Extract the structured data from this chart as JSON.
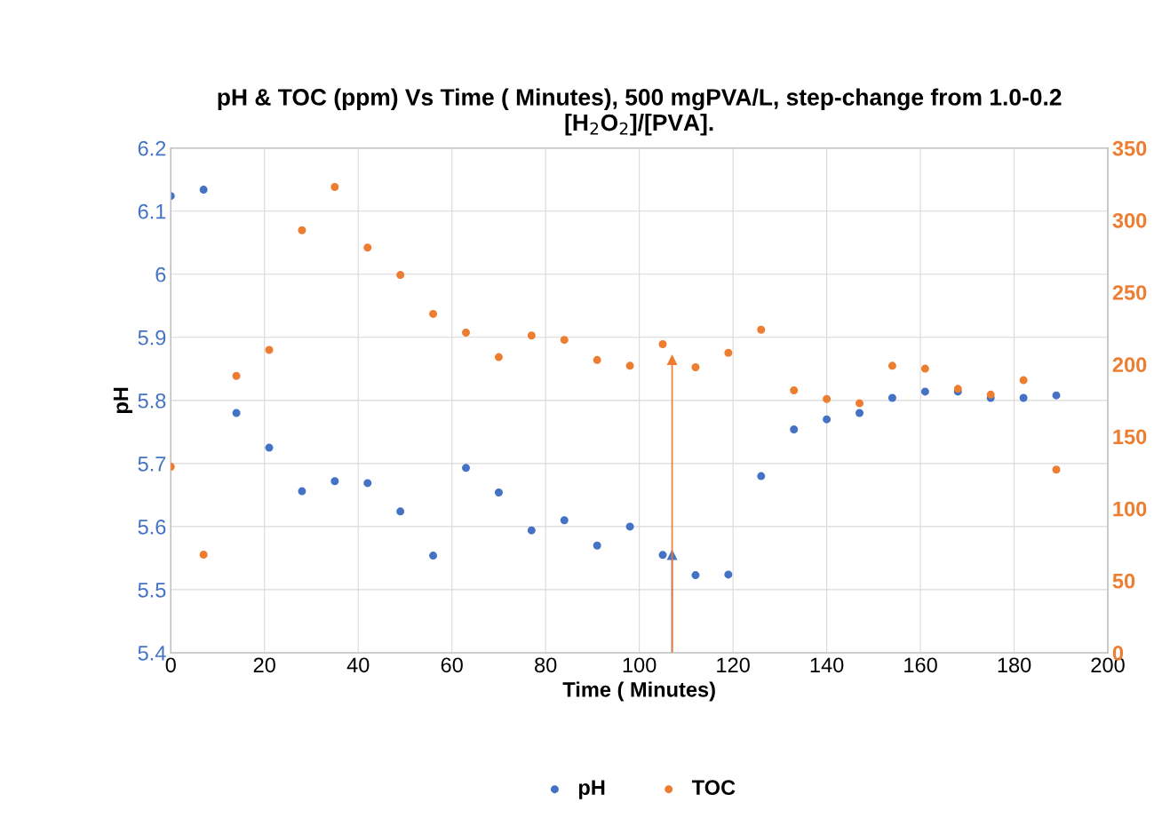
{
  "chart_data": {
    "type": "scatter",
    "title": "pH & TOC (ppm) Vs Time ( Minutes), 500 mgPVA/L, step-change from 1.0-0.2\n[H$_{2}$O$_{2}$]/[PVA].",
    "xlabel": "Time ( Minutes)",
    "ylabel": "pH",
    "x": [
      0,
      7,
      14,
      21,
      28,
      35,
      42,
      49,
      56,
      63,
      70,
      77,
      84,
      91,
      98,
      105,
      112,
      119,
      126,
      133,
      140,
      147,
      154,
      161,
      168,
      175,
      182,
      189
    ],
    "series": [
      {
        "name": "pH",
        "color": "#4472c4",
        "values": [
          6.124,
          6.134,
          5.78,
          5.725,
          5.656,
          5.672,
          5.669,
          5.624,
          5.554,
          5.693,
          5.654,
          5.594,
          5.61,
          5.57,
          5.6,
          5.555,
          5.523,
          5.524,
          5.68,
          5.754,
          5.77,
          5.78,
          5.804,
          5.814,
          5.814,
          5.804,
          5.804,
          5.808
        ]
      },
      {
        "name": "TOC",
        "color": "#ed7d31",
        "axis": "y2",
        "values": [
          129,
          68,
          192,
          210,
          293,
          323,
          281,
          262,
          235,
          222,
          205,
          220,
          217,
          203,
          199,
          214,
          198,
          208,
          224,
          182,
          176,
          173,
          199,
          197,
          183,
          179,
          189,
          127
        ]
      },
      {
        "type": "lollipop",
        "color": "#4472c4",
        "marker": "triangle",
        "x": [
          107
        ],
        "values": [
          5.555
        ]
      },
      {
        "type": "lollipop",
        "color": "#ed7d31",
        "marker": "triangle",
        "axis": "y2",
        "x": [
          107
        ],
        "values": [
          203
        ]
      }
    ],
    "xlim": [
      0,
      200
    ],
    "xticks": [
      0,
      20,
      40,
      60,
      80,
      100,
      120,
      140,
      160,
      180,
      200
    ],
    "ylim": [
      5.4,
      6.2
    ],
    "yticks": [
      5.4,
      5.5,
      5.6,
      5.7,
      5.8,
      5.9,
      6,
      6.1,
      6.2
    ],
    "y2lim": [
      0,
      350
    ],
    "y2ticks": [
      0,
      50,
      100,
      150,
      200,
      250,
      300,
      350
    ],
    "grid": true,
    "legend": "bottom",
    "marker": "circle"
  }
}
